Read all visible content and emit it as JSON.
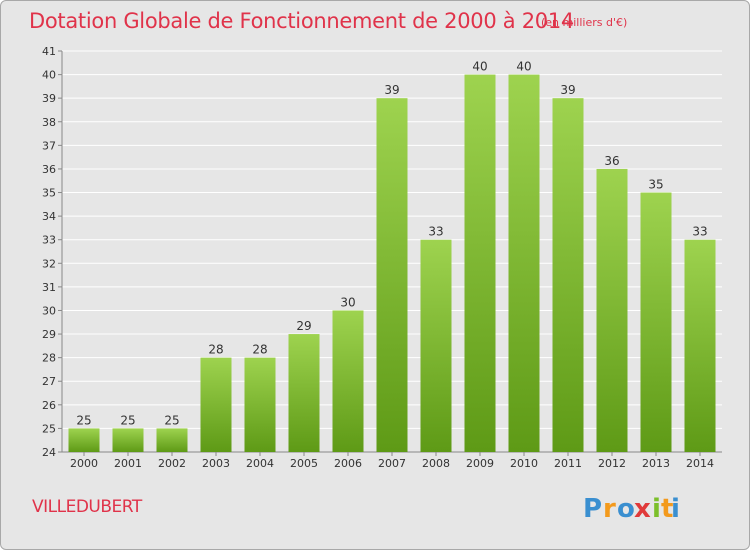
{
  "header": {
    "title": "Dotation Globale de Fonctionnement de 2000 à 2014",
    "unit": "(en milliers d'€)"
  },
  "commune": "VILLEDUBERT",
  "logo": {
    "text": "Proxiti",
    "letters": [
      "P",
      "r",
      "o",
      "x",
      "i",
      "t",
      "i"
    ],
    "colors": [
      "#3a8fd0",
      "#f39a1d",
      "#3a8fd0",
      "#e03a3a",
      "#7bbf2a",
      "#f39a1d",
      "#3a8fd0"
    ]
  },
  "colors": {
    "accent": "#e0334a",
    "bar_top": "#9ed34f",
    "bar_bottom": "#5e9a16",
    "plot_bg": "#e6e6e6",
    "grid": "#ffffff"
  },
  "chart_data": {
    "type": "bar",
    "title": "Dotation Globale de Fonctionnement de 2000 à 2014",
    "subtitle": "(en milliers d'€)",
    "xlabel": "",
    "ylabel": "",
    "categories": [
      "2000",
      "2001",
      "2002",
      "2003",
      "2004",
      "2005",
      "2006",
      "2007",
      "2008",
      "2009",
      "2010",
      "2011",
      "2012",
      "2013",
      "2014"
    ],
    "values": [
      25,
      25,
      25,
      28,
      28,
      29,
      30,
      39,
      33,
      40,
      40,
      39,
      36,
      35,
      33
    ],
    "ylim": [
      24,
      41
    ],
    "yticks": [
      24,
      25,
      26,
      27,
      28,
      29,
      30,
      31,
      32,
      33,
      34,
      35,
      36,
      37,
      38,
      39,
      40,
      41
    ],
    "grid": true,
    "data_labels": true
  }
}
